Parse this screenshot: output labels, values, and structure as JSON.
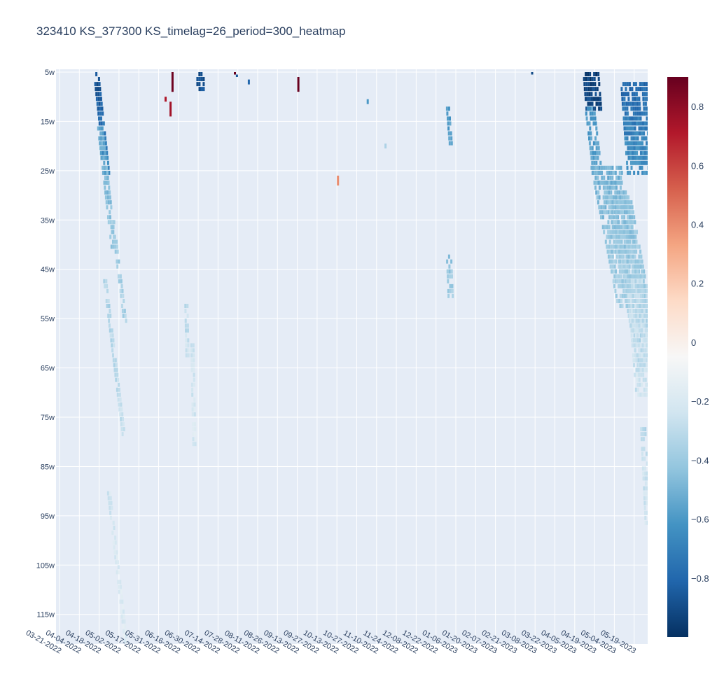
{
  "chart_data": {
    "type": "heatmap",
    "title": "323410 KS_377300 KS_timelag=26_period=300_heatmap",
    "x_tick_labels": [
      "03-21-2022",
      "04-04-2022",
      "04-18-2022",
      "05-02-2022",
      "05-17-2022",
      "05-31-2022",
      "06-16-2022",
      "06-30-2022",
      "07-14-2022",
      "07-28-2022",
      "08-11-2022",
      "08-26-2022",
      "09-13-2022",
      "09-27-2022",
      "10-13-2022",
      "10-27-2022",
      "11-10-2022",
      "11-24-2022",
      "12-08-2022",
      "12-22-2022",
      "01-06-2023",
      "01-20-2023",
      "02-07-2023",
      "02-21-2023",
      "03-08-2023",
      "03-22-2023",
      "04-05-2023",
      "04-19-2023",
      "05-04-2023",
      "05-19-2023"
    ],
    "y_tick_labels": [
      "5w",
      "15w",
      "25w",
      "35w",
      "45w",
      "55w",
      "65w",
      "75w",
      "85w",
      "95w",
      "105w",
      "115w"
    ],
    "y_range": [
      5,
      121
    ],
    "y_reversed": true,
    "colorscale": "RdBu",
    "colorbar": {
      "range": [
        -1.0,
        0.9
      ],
      "ticks": [
        0.8,
        0.6,
        0.4,
        0.2,
        0,
        -0.2,
        -0.4,
        -0.6,
        -0.8
      ],
      "tick_labels": [
        "0.8",
        "0.6",
        "0.4",
        "0.2",
        "0",
        "−0.2",
        "−0.4",
        "−0.6",
        "−0.8"
      ]
    },
    "grid": true,
    "approximate_bands": [
      {
        "start_x_tick": 1.7,
        "slope_ticks_per_week": 0.027,
        "y_from": 5,
        "y_to": 27,
        "width_ticks": 0.35,
        "value_start": -0.9,
        "value_end": -0.6
      },
      {
        "start_x_tick": 1.9,
        "slope_ticks_per_week": 0.028,
        "y_from": 16,
        "y_to": 40,
        "width_ticks": 0.35,
        "value_start": -0.55,
        "value_end": -0.4
      },
      {
        "start_x_tick": 2.6,
        "slope_ticks_per_week": 0.03,
        "y_from": 35,
        "y_to": 55,
        "width_ticks": 0.25,
        "value_start": -0.4,
        "value_end": -0.35
      },
      {
        "start_x_tick": 2.2,
        "slope_ticks_per_week": 0.03,
        "y_from": 47,
        "y_to": 78,
        "width_ticks": 0.25,
        "value_start": -0.35,
        "value_end": -0.25
      },
      {
        "start_x_tick": 2.4,
        "slope_ticks_per_week": 0.028,
        "y_from": 90,
        "y_to": 121,
        "width_ticks": 0.25,
        "value_start": -0.22,
        "value_end": -0.18
      },
      {
        "start_x_tick": 26.4,
        "slope_ticks_per_week": 0.02,
        "y_from": 5,
        "y_to": 12,
        "width_ticks": 0.8,
        "value_start": -0.95,
        "value_end": -0.9
      },
      {
        "start_x_tick": 26.5,
        "slope_ticks_per_week": 0.03,
        "y_from": 12,
        "y_to": 25,
        "width_ticks": 0.5,
        "value_start": -0.6,
        "value_end": -0.55
      },
      {
        "start_x_tick": 28.3,
        "slope_ticks_per_week": 0.018,
        "y_from": 7,
        "y_to": 25,
        "width_ticks": 1.7,
        "value_start": -0.8,
        "value_end": -0.6
      },
      {
        "start_x_tick": 26.8,
        "slope_ticks_per_week": 0.048,
        "y_from": 24,
        "y_to": 52,
        "width_ticks": 1.6,
        "value_start": -0.5,
        "value_end": -0.35
      },
      {
        "start_x_tick": 27.6,
        "slope_ticks_per_week": 0.045,
        "y_from": 30,
        "y_to": 65,
        "width_ticks": 1.3,
        "value_start": -0.45,
        "value_end": -0.3
      },
      {
        "start_x_tick": 28.6,
        "slope_ticks_per_week": 0.02,
        "y_from": 47,
        "y_to": 70,
        "width_ticks": 0.8,
        "value_start": -0.3,
        "value_end": -0.25
      },
      {
        "start_x_tick": 29.3,
        "slope_ticks_per_week": 0.012,
        "y_from": 77,
        "y_to": 96,
        "width_ticks": 0.3,
        "value_start": -0.3,
        "value_end": -0.22
      },
      {
        "start_x_tick": 19.5,
        "slope_ticks_per_week": 0.01,
        "y_from": 42,
        "y_to": 50,
        "width_ticks": 0.3,
        "value_start": -0.45,
        "value_end": -0.35
      },
      {
        "start_x_tick": 19.5,
        "slope_ticks_per_week": 0.02,
        "y_from": 12,
        "y_to": 19,
        "width_ticks": 0.25,
        "value_start": -0.6,
        "value_end": -0.55
      },
      {
        "start_x_tick": 6.3,
        "slope_ticks_per_week": 0.005,
        "y_from": 52,
        "y_to": 62,
        "width_ticks": 0.25,
        "value_start": -0.3,
        "value_end": -0.25
      },
      {
        "start_x_tick": 6.6,
        "slope_ticks_per_week": 0.005,
        "y_from": 60,
        "y_to": 80,
        "width_ticks": 0.2,
        "value_start": -0.25,
        "value_end": -0.2
      },
      {
        "start_x_tick": 6.9,
        "slope_ticks_per_week": 0.003,
        "y_from": 5,
        "y_to": 8,
        "width_ticks": 0.4,
        "value_start": -0.9,
        "value_end": -0.85
      }
    ],
    "approximate_cells": [
      {
        "x_tick": 5.65,
        "y_from": 5,
        "y_to": 9,
        "value": 0.88
      },
      {
        "x_tick": 5.55,
        "y_from": 11,
        "y_to": 14,
        "value": 0.75
      },
      {
        "x_tick": 5.3,
        "y_from": 10,
        "y_to": 11,
        "value": 0.72
      },
      {
        "x_tick": 8.8,
        "y_from": 5,
        "y_to": 5.5,
        "value": 0.9
      },
      {
        "x_tick": 12.0,
        "y_from": 6,
        "y_to": 9,
        "value": 0.9
      },
      {
        "x_tick": 9.5,
        "y_from": 6.5,
        "y_to": 7.5,
        "value": -0.8
      },
      {
        "x_tick": 14.0,
        "y_from": 26,
        "y_to": 28,
        "value": 0.4
      },
      {
        "x_tick": 15.5,
        "y_from": 10.5,
        "y_to": 11.5,
        "value": -0.6
      },
      {
        "x_tick": 16.4,
        "y_from": 19.5,
        "y_to": 20.5,
        "value": -0.35
      },
      {
        "x_tick": 23.8,
        "y_from": 5,
        "y_to": 5.5,
        "value": -0.9
      },
      {
        "x_tick": 8.9,
        "y_from": 5.5,
        "y_to": 6.0,
        "value": -0.85
      }
    ]
  }
}
